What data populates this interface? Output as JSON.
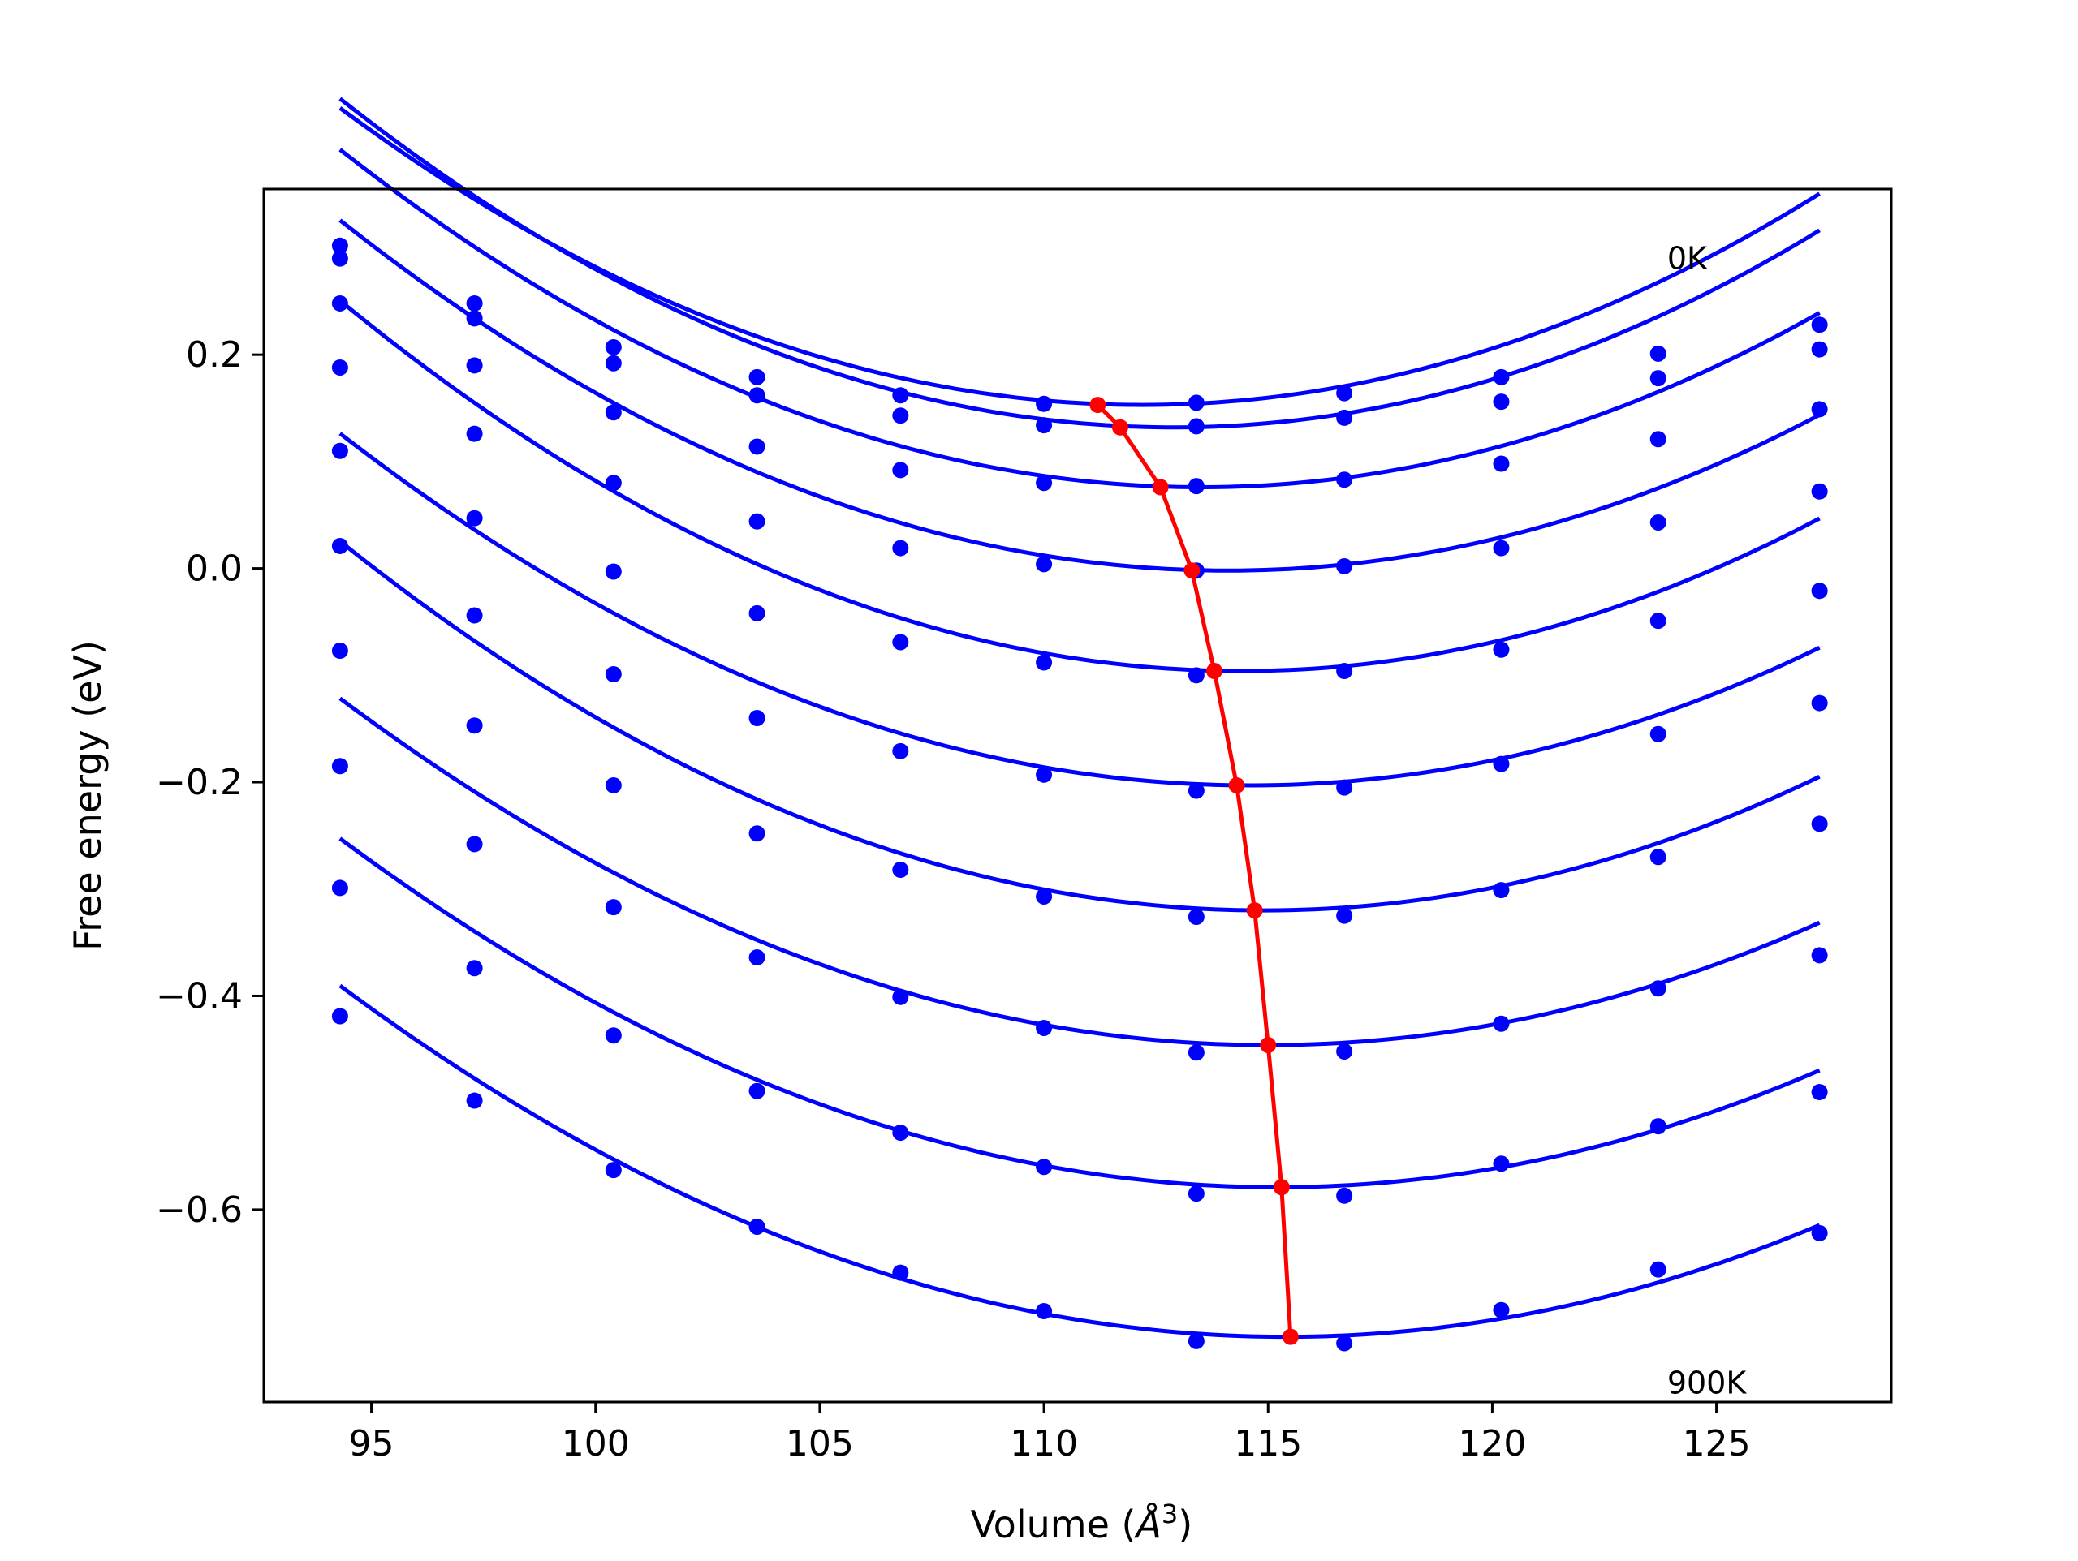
{
  "chart_data": {
    "type": "line",
    "xlabel": "Volume (Å³)",
    "xlabel_parts": {
      "main": "Volume (",
      "angstrom": "Å",
      "exponent": "3",
      "close": ")"
    },
    "ylabel": "Free energy (eV)",
    "xlim": [
      92.6,
      128.9
    ],
    "ylim": [
      -0.78,
      0.355
    ],
    "xticks": [
      95,
      100,
      105,
      110,
      115,
      120,
      125
    ],
    "xtick_labels": [
      "95",
      "100",
      "105",
      "110",
      "115",
      "120",
      "125"
    ],
    "yticks": [
      -0.6,
      -0.4,
      -0.2,
      0.0,
      0.2
    ],
    "ytick_labels": [
      "−0.6",
      "−0.4",
      "−0.2",
      "0.0",
      "0.2"
    ],
    "grid": false,
    "annotations": [
      {
        "text": "0K",
        "x": 123.9,
        "y": 0.29
      },
      {
        "text": "900K",
        "x": 123.9,
        "y": -0.762
      }
    ],
    "x": [
      94.3,
      97.3,
      100.4,
      103.6,
      106.8,
      110.0,
      113.4,
      116.7,
      120.2,
      123.7,
      127.3
    ],
    "series": [
      {
        "points": [
          0.302,
          0.248,
          0.207,
          0.179,
          0.162,
          0.154,
          0.155,
          0.164,
          0.179,
          0.201,
          0.228
        ],
        "fit": {
          "a": 0.000867,
          "v0": 112.2,
          "e0": 0.153
        }
      },
      {
        "points": [
          0.29,
          0.234,
          0.192,
          0.162,
          0.143,
          0.134,
          0.133,
          0.141,
          0.156,
          0.178,
          0.205
        ],
        "fit": {
          "a": 0.000889,
          "v0": 112.9,
          "e0": 0.132
        }
      },
      {
        "points": [
          0.248,
          0.19,
          0.146,
          0.114,
          0.092,
          0.08,
          0.077,
          0.083,
          0.098,
          0.121,
          0.149
        ],
        "fit": {
          "a": 0.000857,
          "v0": 113.5,
          "e0": 0.076
        }
      },
      {
        "points": [
          0.188,
          0.126,
          0.08,
          0.044,
          0.019,
          0.004,
          -0.002,
          0.002,
          0.019,
          0.043,
          0.072
        ],
        "fit": {
          "a": 0.000836,
          "v0": 114.1,
          "e0": -0.002
        }
      },
      {
        "points": [
          0.11,
          0.047,
          -0.003,
          -0.042,
          -0.069,
          -0.088,
          -0.1,
          -0.096,
          -0.076,
          -0.049,
          -0.021
        ],
        "fit": {
          "a": 0.000858,
          "v0": 114.4,
          "e0": -0.096
        }
      },
      {
        "points": [
          0.021,
          -0.044,
          -0.099,
          -0.14,
          -0.171,
          -0.193,
          -0.208,
          -0.205,
          -0.183,
          -0.155,
          -0.126
        ],
        "fit": {
          "a": 0.000799,
          "v0": 114.6,
          "e0": -0.203
        }
      },
      {
        "points": [
          -0.077,
          -0.147,
          -0.203,
          -0.248,
          -0.282,
          -0.307,
          -0.326,
          -0.325,
          -0.301,
          -0.27,
          -0.239
        ],
        "fit": {
          "a": 0.000814,
          "v0": 114.9,
          "e0": -0.32
        }
      },
      {
        "points": [
          -0.185,
          -0.258,
          -0.317,
          -0.364,
          -0.401,
          -0.43,
          -0.453,
          -0.452,
          -0.426,
          -0.393,
          -0.362
        ],
        "fit": {
          "a": 0.000757,
          "v0": 115.0,
          "e0": -0.446
        }
      },
      {
        "points": [
          -0.299,
          -0.374,
          -0.437,
          -0.489,
          -0.528,
          -0.56,
          -0.585,
          -0.587,
          -0.557,
          -0.522,
          -0.49
        ],
        "fit": {
          "a": 0.000747,
          "v0": 115.2,
          "e0": -0.579
        }
      },
      {
        "points": [
          -0.419,
          -0.498,
          -0.563,
          -0.616,
          -0.659,
          -0.695,
          -0.723,
          -0.725,
          -0.694,
          -0.656,
          -0.622
        ],
        "fit": {
          "a": 0.000738,
          "v0": 115.4,
          "e0": -0.719
        }
      }
    ],
    "minima_series": {
      "x": [
        111.2,
        111.7,
        112.6,
        113.3,
        113.8,
        114.3,
        114.7,
        115.0,
        115.3,
        115.5
      ],
      "y": [
        0.153,
        0.132,
        0.076,
        -0.002,
        -0.096,
        -0.203,
        -0.32,
        -0.446,
        -0.579,
        -0.719
      ]
    },
    "colors": {
      "curves": "#0000ff",
      "minima": "#ff0000",
      "axes": "#000000"
    }
  }
}
